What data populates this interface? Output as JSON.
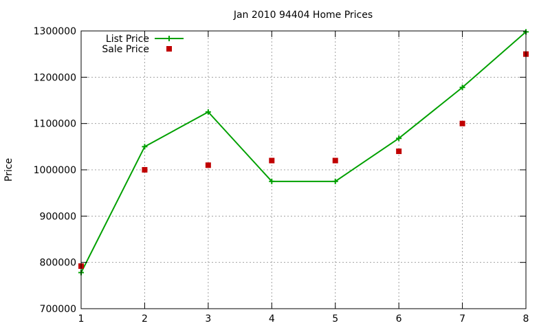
{
  "chart_data": {
    "type": "line",
    "title": "Jan 2010 94404 Home Prices",
    "xlabel": "",
    "ylabel": "Price",
    "xlim": [
      1,
      8
    ],
    "ylim": [
      700000,
      1300000
    ],
    "xticks": [
      1,
      2,
      3,
      4,
      5,
      6,
      7,
      8
    ],
    "yticks": [
      700000,
      800000,
      900000,
      1000000,
      1100000,
      1200000,
      1300000
    ],
    "xtick_labels": [
      "1",
      "2",
      "3",
      "4",
      "5",
      "6",
      "7",
      "8"
    ],
    "ytick_labels": [
      "700000",
      "800000",
      "900000",
      "1000000",
      "1100000",
      "1200000",
      "1300000"
    ],
    "grid": true,
    "legend": "top-left",
    "x": [
      1,
      2,
      3,
      4,
      5,
      6,
      7,
      8
    ],
    "series": [
      {
        "name": "List Price",
        "style": "linespoints",
        "marker": "plus",
        "color": "#00a000",
        "values": [
          778000,
          1050000,
          1125000,
          975000,
          975000,
          1068000,
          1178000,
          1298000
        ]
      },
      {
        "name": "Sale Price",
        "style": "points",
        "marker": "square",
        "color": "#c00000",
        "values": [
          792000,
          1000000,
          1010000,
          1020000,
          1020000,
          1040000,
          1100000,
          1250000
        ]
      }
    ]
  }
}
